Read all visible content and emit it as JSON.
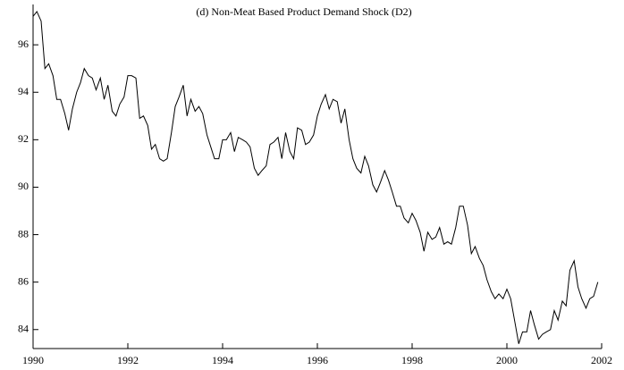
{
  "chart_data": {
    "type": "line",
    "title": "(d) Non-Meat Based Product Demand Shock (D2)",
    "x": [
      1990.0,
      1990.08,
      1990.17,
      1990.25,
      1990.33,
      1990.42,
      1990.5,
      1990.58,
      1990.67,
      1990.75,
      1990.83,
      1990.92,
      1991.0,
      1991.08,
      1991.17,
      1991.25,
      1991.33,
      1991.42,
      1991.5,
      1991.58,
      1991.67,
      1991.75,
      1991.83,
      1991.92,
      1992.0,
      1992.08,
      1992.17,
      1992.25,
      1992.33,
      1992.42,
      1992.5,
      1992.58,
      1992.67,
      1992.75,
      1992.83,
      1992.92,
      1993.0,
      1993.08,
      1993.17,
      1993.25,
      1993.33,
      1993.42,
      1993.5,
      1993.58,
      1993.67,
      1993.75,
      1993.83,
      1993.92,
      1994.0,
      1994.08,
      1994.17,
      1994.25,
      1994.33,
      1994.42,
      1994.5,
      1994.58,
      1994.67,
      1994.75,
      1994.83,
      1994.92,
      1995.0,
      1995.08,
      1995.17,
      1995.25,
      1995.33,
      1995.42,
      1995.5,
      1995.58,
      1995.67,
      1995.75,
      1995.83,
      1995.92,
      1996.0,
      1996.08,
      1996.17,
      1996.25,
      1996.33,
      1996.42,
      1996.5,
      1996.58,
      1996.67,
      1996.75,
      1996.83,
      1996.92,
      1997.0,
      1997.08,
      1997.17,
      1997.25,
      1997.33,
      1997.42,
      1997.5,
      1997.58,
      1997.67,
      1997.75,
      1997.83,
      1997.92,
      1998.0,
      1998.08,
      1998.17,
      1998.25,
      1998.33,
      1998.42,
      1998.5,
      1998.58,
      1998.67,
      1998.75,
      1998.83,
      1998.92,
      1999.0,
      1999.08,
      1999.17,
      1999.25,
      1999.33,
      1999.42,
      1999.5,
      1999.58,
      1999.67,
      1999.75,
      1999.83,
      1999.92,
      2000.0,
      2000.08,
      2000.17,
      2000.25,
      2000.33,
      2000.42,
      2000.5,
      2000.58,
      2000.67,
      2000.75,
      2000.83,
      2000.92,
      2001.0,
      2001.08,
      2001.17,
      2001.25,
      2001.33,
      2001.42,
      2001.5,
      2001.58,
      2001.67,
      2001.75,
      2001.83,
      2001.92
    ],
    "values": [
      97.2,
      97.4,
      97.0,
      95.0,
      95.2,
      94.7,
      93.7,
      93.7,
      93.1,
      92.4,
      93.3,
      94.0,
      94.4,
      95.0,
      94.7,
      94.6,
      94.1,
      94.6,
      93.7,
      94.3,
      93.2,
      93.0,
      93.5,
      93.8,
      94.7,
      94.7,
      94.6,
      92.9,
      93.0,
      92.6,
      91.6,
      91.8,
      91.2,
      91.1,
      91.2,
      92.3,
      93.4,
      93.8,
      94.3,
      93.0,
      93.7,
      93.2,
      93.4,
      93.1,
      92.2,
      91.7,
      91.2,
      91.2,
      92.0,
      92.0,
      92.3,
      91.5,
      92.1,
      92.0,
      91.9,
      91.7,
      90.8,
      90.5,
      90.7,
      90.9,
      91.8,
      91.9,
      92.1,
      91.2,
      92.3,
      91.5,
      91.2,
      92.5,
      92.4,
      91.8,
      91.9,
      92.2,
      93.0,
      93.5,
      93.9,
      93.3,
      93.7,
      93.6,
      92.7,
      93.3,
      92.0,
      91.2,
      90.8,
      90.6,
      91.3,
      90.9,
      90.1,
      89.8,
      90.2,
      90.7,
      90.3,
      89.8,
      89.2,
      89.2,
      88.7,
      88.5,
      88.9,
      88.6,
      88.1,
      87.3,
      88.1,
      87.8,
      87.9,
      88.3,
      87.6,
      87.7,
      87.6,
      88.3,
      89.2,
      89.2,
      88.4,
      87.2,
      87.5,
      87.0,
      86.7,
      86.1,
      85.6,
      85.3,
      85.5,
      85.3,
      85.7,
      85.3,
      84.3,
      83.4,
      83.9,
      83.9,
      84.8,
      84.2,
      83.6,
      83.8,
      83.9,
      84.0,
      84.8,
      84.4,
      85.2,
      85.0,
      86.5,
      86.9,
      85.8,
      85.3,
      84.9,
      85.3,
      85.4,
      86.0
    ],
    "color": "#000000",
    "xlim": [
      1990,
      2002
    ],
    "xticks": [
      1990,
      1992,
      1994,
      1996,
      1998,
      2000,
      2002
    ],
    "ylim": [
      83.2,
      97.7
    ],
    "yticks": [
      84,
      86,
      88,
      90,
      92,
      94,
      96
    ]
  }
}
